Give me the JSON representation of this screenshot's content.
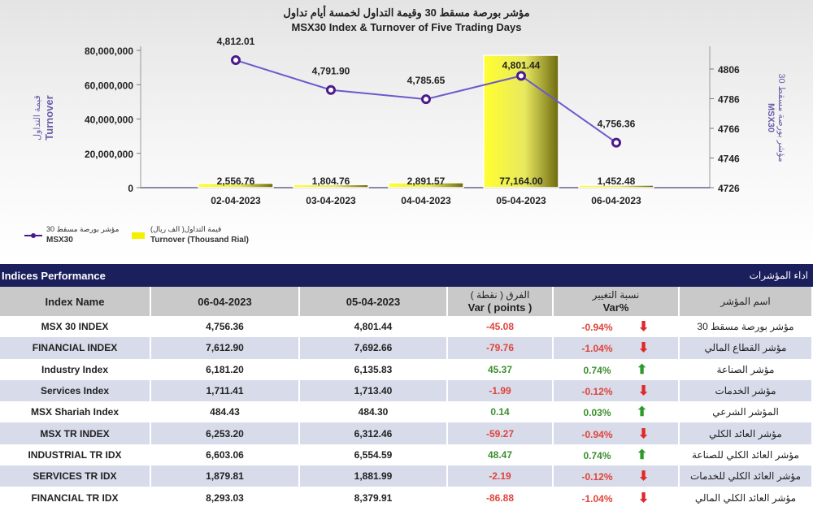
{
  "chart_data": {
    "type": "bar+line",
    "title_ar": "مؤشر بورصة مسقط 30 وقيمة التداول لخمسة أيام تداول",
    "title": "MSX30 Index & Turnover of Five Trading Days",
    "categories": [
      "02-04-2023",
      "03-04-2023",
      "04-04-2023",
      "05-04-2023",
      "06-04-2023"
    ],
    "series": [
      {
        "name": "Turnover (Thousand Rial)",
        "name_ar": "قيمة التداول( الف ريال)",
        "type": "bar",
        "axis": "left",
        "values": [
          2556.76,
          1804.76,
          2891.57,
          77164.0,
          1452.48
        ],
        "labels": [
          "2,556.76",
          "1,804.76",
          "2,891.57",
          "77,164.00",
          "1,452.48"
        ],
        "color": "#f2f000"
      },
      {
        "name": "MSX30",
        "name_ar": "مؤشر بورصة مسقط 30",
        "type": "line",
        "axis": "right",
        "values": [
          4812.01,
          4791.9,
          4785.65,
          4801.44,
          4756.36
        ],
        "labels": [
          "4,812.01",
          "4,791.90",
          "4,785.65",
          "4,801.44",
          "4,756.36"
        ],
        "color": "#6a5acd"
      }
    ],
    "left_axis": {
      "label": "Turnover",
      "label_ar": "قيمة التداول",
      "ylim": [
        0,
        80000000
      ],
      "ticks": [
        "0",
        "20,000,000",
        "40,000,000",
        "60,000,000",
        "80,000,000"
      ]
    },
    "right_axis": {
      "label": "MSX30",
      "label_ar": "مؤشر بورصة مسقط 30",
      "ylim": [
        4726,
        4806
      ],
      "ticks": [
        "4726",
        "4746",
        "4766",
        "4786",
        "4806"
      ]
    },
    "legend": "bottom-left"
  },
  "table": {
    "title": "Indices Performance",
    "title_ar": "اداء المؤشرات",
    "headers": {
      "name": "Index Name",
      "d1": "06-04-2023",
      "d2": "05-04-2023",
      "var_ar": "الفرق ( نقطة )",
      "var": "Var ( points )",
      "pct_ar": "نسبة التغيير",
      "pct": "Var%",
      "name_ar": "اسم المؤشر"
    },
    "rows": [
      {
        "name": "MSX 30 INDEX",
        "d1": "4,756.36",
        "d2": "4,801.44",
        "var": "-45.08",
        "pct": "-0.94%",
        "dir": "down",
        "ar": "مؤشر بورصة مسقط 30"
      },
      {
        "name": "FINANCIAL INDEX",
        "d1": "7,612.90",
        "d2": "7,692.66",
        "var": "-79.76",
        "pct": "-1.04%",
        "dir": "down",
        "ar": "مؤشر القطاع المالي"
      },
      {
        "name": "Industry Index",
        "d1": "6,181.20",
        "d2": "6,135.83",
        "var": "45.37",
        "pct": "0.74%",
        "dir": "up",
        "ar": "مؤشر الصناعة"
      },
      {
        "name": "Services Index",
        "d1": "1,711.41",
        "d2": "1,713.40",
        "var": "-1.99",
        "pct": "-0.12%",
        "dir": "down",
        "ar": "مؤشر الخدمات"
      },
      {
        "name": "MSX Shariah Index",
        "d1": "484.43",
        "d2": "484.30",
        "var": "0.14",
        "pct": "0.03%",
        "dir": "up",
        "ar": "المؤشر الشرعي"
      },
      {
        "name": "MSX TR INDEX",
        "d1": "6,253.20",
        "d2": "6,312.46",
        "var": "-59.27",
        "pct": "-0.94%",
        "dir": "down",
        "ar": "مؤشر العائد الكلي"
      },
      {
        "name": "INDUSTRIAL TR IDX",
        "d1": "6,603.06",
        "d2": "6,554.59",
        "var": "48.47",
        "pct": "0.74%",
        "dir": "up",
        "ar": "مؤشر العائد الكلي للصناعة"
      },
      {
        "name": "SERVICES TR IDX",
        "d1": "1,879.81",
        "d2": "1,881.99",
        "var": "-2.19",
        "pct": "-0.12%",
        "dir": "down",
        "ar": "مؤشر العائد الكلي للخدمات"
      },
      {
        "name": "FINANCIAL TR IDX",
        "d1": "8,293.03",
        "d2": "8,379.91",
        "var": "-86.88",
        "pct": "-1.04%",
        "dir": "down",
        "ar": "مؤشر العائد الكلي المالي"
      }
    ]
  }
}
